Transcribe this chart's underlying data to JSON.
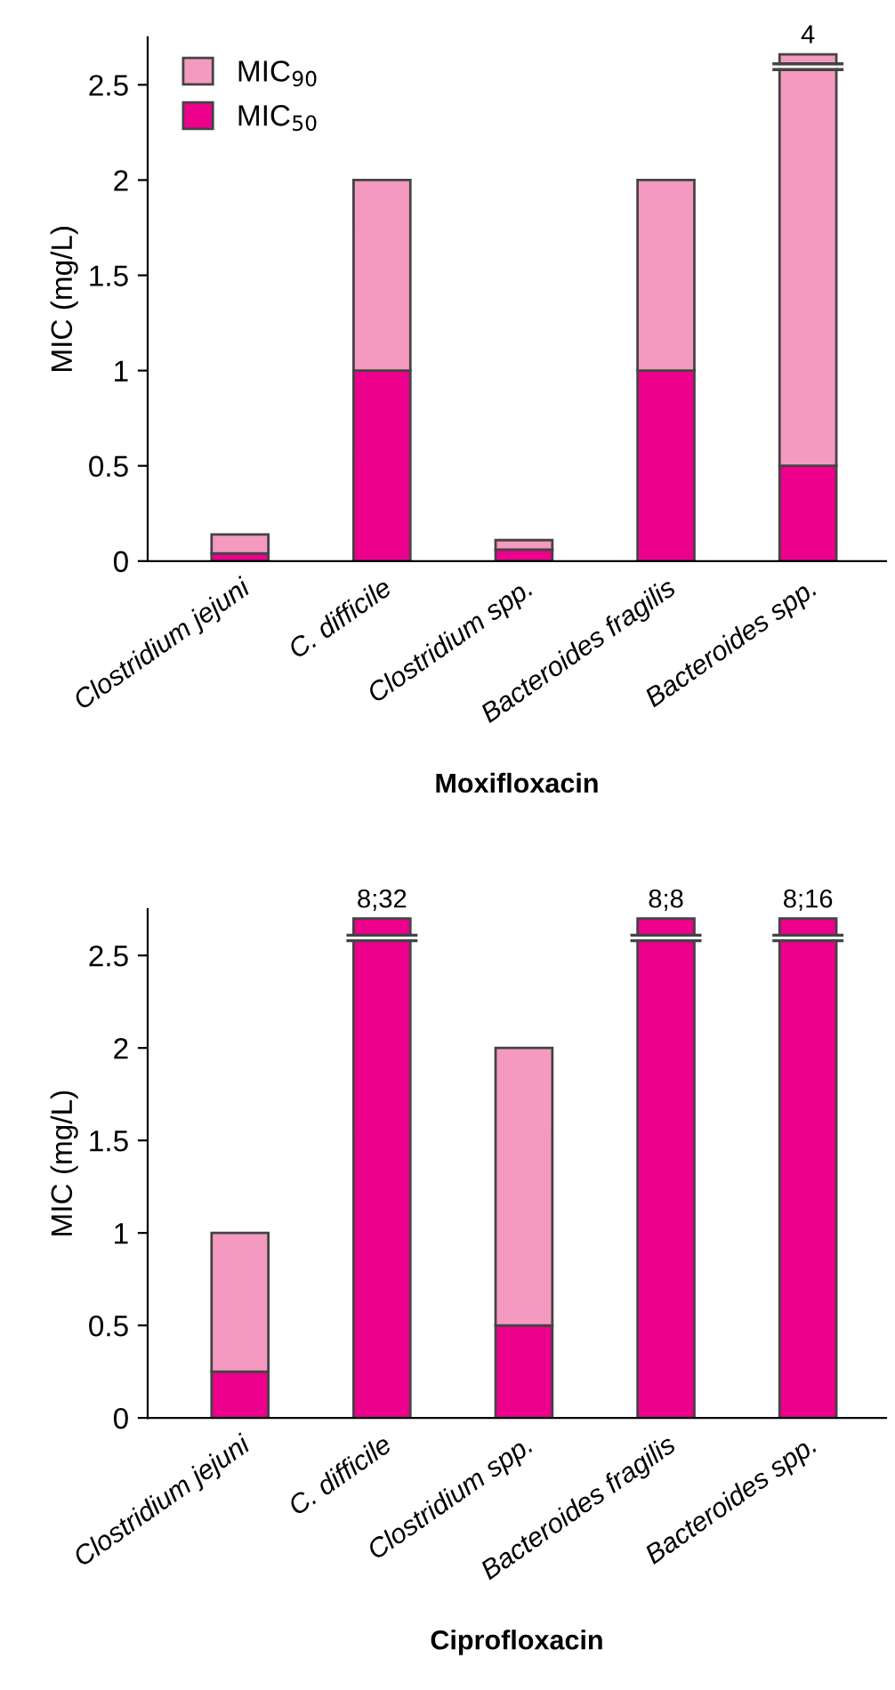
{
  "chart_data": [
    {
      "type": "bar",
      "stacked": true,
      "xlabel": "Moxifloxacin",
      "ylabel": "MIC (mg/L)",
      "categories": [
        "Clostridium jejuni",
        "C. difficile",
        "Clostridium spp.",
        "Bacteroides fragilis",
        "Bacteroides spp."
      ],
      "series": [
        {
          "name": "MIC$_{50}$",
          "color": "#ec008c",
          "values": [
            0.04,
            1,
            0.06,
            1,
            0.5
          ]
        },
        {
          "name": "MIC$_{90}$",
          "color": "#f49ac1",
          "values": [
            0.1,
            1,
            0.05,
            1,
            2.16
          ]
        }
      ],
      "totals": [
        null,
        null,
        null,
        null,
        "4"
      ],
      "ylim": [
        0,
        2.75
      ],
      "yticks": [
        0,
        0.5,
        1,
        1.5,
        2,
        2.5
      ],
      "legend": "top left",
      "grid": false
    },
    {
      "type": "bar",
      "stacked": true,
      "xlabel": "Ciprofloxacin",
      "ylabel": "MIC (mg/L)",
      "categories": [
        "Clostridium jejuni",
        "C. difficile",
        "Clostridium spp.",
        "Bacteroides fragilis",
        "Bacteroides spp."
      ],
      "series": [
        {
          "color": "#ec008c",
          "values": [
            0.25,
            2.7,
            0.5,
            2.7,
            2.7
          ]
        },
        {
          "color": "#f49ac1",
          "values": [
            0.75,
            null,
            1.5,
            null,
            null
          ]
        }
      ],
      "totals": [
        null,
        "8;32",
        null,
        "8;8",
        "8;16"
      ],
      "ylim": [
        0,
        2.75
      ],
      "yticks": [
        0,
        0.5,
        1,
        1.5,
        2,
        2.5
      ],
      "grid": false
    }
  ]
}
